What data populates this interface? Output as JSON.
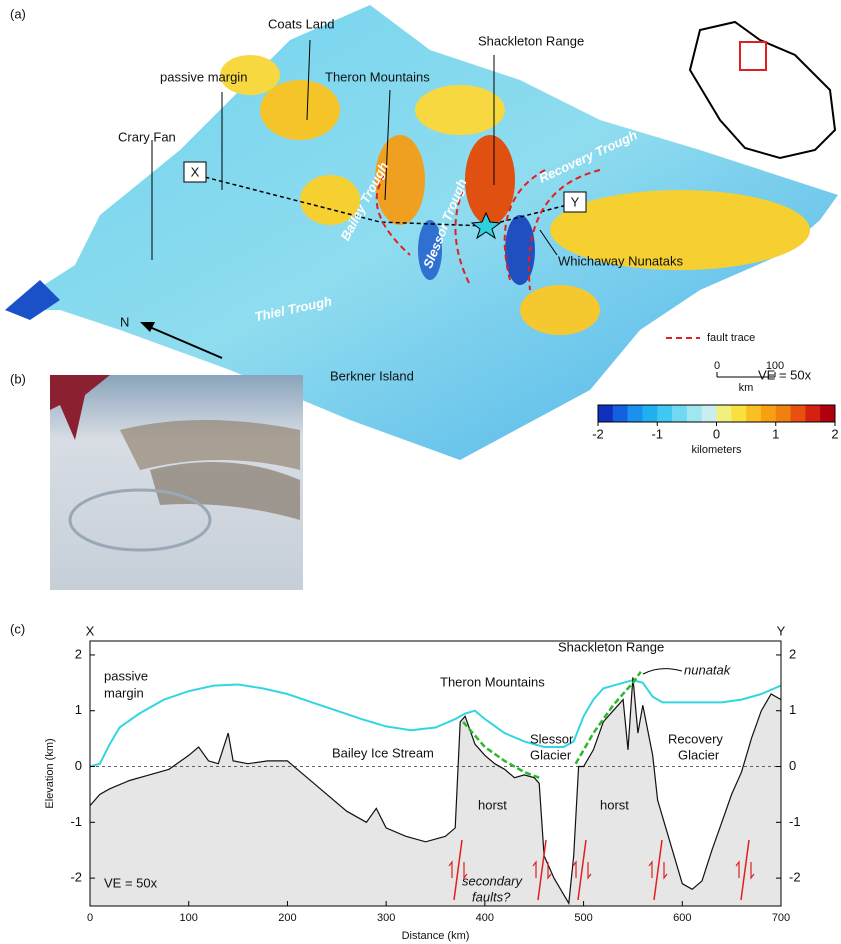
{
  "panel_a": {
    "label": "(a)",
    "map_labels": {
      "coats": "Coats Land",
      "passive": "passive margin",
      "theron": "Theron Mountains",
      "shackleton": "Shackleton Range",
      "crary": "Crary Fan",
      "x": "X",
      "y": "Y",
      "whichaway": "Whichaway Nunataks",
      "berkner": "Berkner Island",
      "north": "N"
    },
    "trough_labels": {
      "bailey": "Bailey Trough",
      "slessor": "Slessor Trough",
      "recovery": "Recovery Trough",
      "thiel": "Thiel Trough"
    },
    "legend_fault": "fault trace",
    "scale_bar": {
      "ticks": [
        0,
        100
      ],
      "unit": "km"
    },
    "ve": "VE = 50x",
    "colorbar": {
      "lim": [
        -2,
        2
      ],
      "ticks": [
        -2,
        -1,
        0,
        1,
        2
      ],
      "label": "kilometers",
      "colors": [
        "#1030c0",
        "#1560e0",
        "#1a90f0",
        "#20b0f0",
        "#40c8f0",
        "#70d8f0",
        "#a0e6f0",
        "#c8eef0",
        "#f0f080",
        "#f8e040",
        "#f8c020",
        "#f8a010",
        "#f08010",
        "#e85010",
        "#d82010",
        "#b00010"
      ]
    }
  },
  "panel_b": {
    "label": "(b)"
  },
  "chart_data": {
    "type": "line",
    "label": "(c)",
    "end_left": "X",
    "end_right": "Y",
    "xlabel": "Distance (km)",
    "ylabel": "Elevation (km)",
    "xlim": [
      0,
      700
    ],
    "ylim": [
      -2.5,
      2.25
    ],
    "xticks": [
      0,
      100,
      200,
      300,
      400,
      500,
      600,
      700
    ],
    "yticks": [
      -2,
      -1,
      0,
      1,
      2
    ],
    "annotations": {
      "passive": [
        "passive",
        "margin"
      ],
      "theron": "Theron Mountains",
      "shackleton": "Shackleton Range",
      "nunatak": "nunatak",
      "bailey": "Bailey Ice Stream",
      "slessor": [
        "Slessor",
        "Glacier"
      ],
      "recovery": [
        "Recovery",
        "Glacier"
      ],
      "horst": [
        "horst",
        "horst"
      ],
      "faults": [
        "secondary",
        "faults?"
      ],
      "ve": "VE = 50x"
    },
    "series": [
      {
        "color": "#33d6e0",
        "x": [
          0,
          10,
          20,
          30,
          50,
          75,
          100,
          125,
          150,
          175,
          200,
          225,
          250,
          275,
          300,
          325,
          350,
          370,
          380,
          390,
          400,
          420,
          440,
          460,
          480,
          490,
          500,
          510,
          520,
          530,
          550,
          560,
          570,
          580,
          600,
          620,
          640,
          660,
          680,
          700
        ],
        "values": [
          0,
          0.05,
          0.4,
          0.7,
          0.95,
          1.2,
          1.35,
          1.45,
          1.47,
          1.4,
          1.3,
          1.15,
          1.0,
          0.85,
          0.72,
          0.65,
          0.7,
          0.85,
          0.95,
          1.0,
          0.85,
          0.6,
          0.45,
          0.35,
          0.35,
          0.45,
          0.9,
          1.2,
          1.4,
          1.45,
          1.55,
          1.5,
          1.25,
          1.15,
          1.15,
          1.15,
          1.15,
          1.2,
          1.3,
          1.45
        ]
      },
      {
        "color": "#111111",
        "fill": "#e6e6e6",
        "x": [
          0,
          10,
          20,
          40,
          60,
          80,
          100,
          110,
          120,
          130,
          140,
          145,
          160,
          180,
          200,
          220,
          240,
          260,
          280,
          290,
          300,
          320,
          340,
          360,
          370,
          375,
          380,
          390,
          400,
          410,
          420,
          430,
          440,
          450,
          455,
          460,
          470,
          480,
          485,
          490,
          495,
          500,
          510,
          520,
          530,
          540,
          545,
          550,
          555,
          560,
          570,
          575,
          580,
          590,
          600,
          610,
          620,
          630,
          640,
          650,
          660,
          670,
          680,
          690,
          700
        ],
        "values": [
          -0.7,
          -0.5,
          -0.4,
          -0.25,
          -0.15,
          -0.05,
          0.2,
          0.35,
          0.1,
          0.05,
          0.6,
          0.1,
          0.05,
          0.1,
          0.1,
          -0.2,
          -0.5,
          -0.8,
          -1.0,
          -0.75,
          -1.1,
          -1.25,
          -1.35,
          -1.25,
          -1.1,
          0.8,
          0.9,
          0.4,
          0.2,
          0.05,
          -0.05,
          -0.2,
          -0.15,
          -0.2,
          -0.3,
          -1.6,
          -2.0,
          -2.3,
          -2.45,
          -1.6,
          0.0,
          0.0,
          0.3,
          0.8,
          1.0,
          1.2,
          0.3,
          1.6,
          0.6,
          1.1,
          0.2,
          -0.6,
          -0.9,
          -1.5,
          -2.1,
          -2.2,
          -2.05,
          -1.5,
          -1.0,
          -0.5,
          -0.1,
          0.5,
          1.0,
          1.3,
          1.2
        ]
      },
      {
        "color": "#2cb82c",
        "dash": true,
        "x": [
          378,
          400,
          420,
          440,
          455
        ],
        "values": [
          0.8,
          0.35,
          0.1,
          -0.1,
          -0.2
        ]
      },
      {
        "color": "#2cb82c",
        "dash": true,
        "x": [
          492,
          510,
          530,
          550,
          558
        ],
        "values": [
          0.05,
          0.6,
          1.1,
          1.5,
          1.7
        ]
      }
    ]
  }
}
